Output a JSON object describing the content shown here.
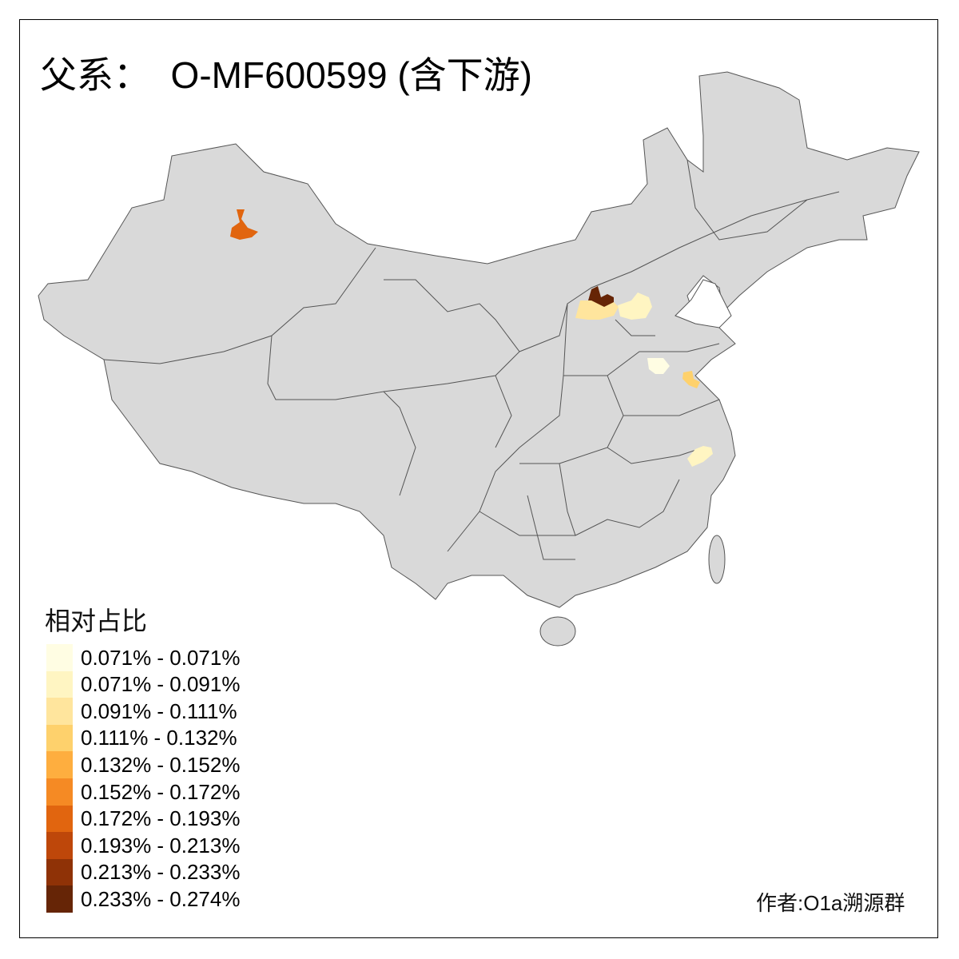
{
  "title": "父系：  O-MF600599 (含下游)",
  "legend": {
    "title": "相对占比",
    "items": [
      {
        "label": "0.071% - 0.071%",
        "color": "#FFFDE3"
      },
      {
        "label": "0.071% - 0.091%",
        "color": "#FFF5C2"
      },
      {
        "label": "0.091% - 0.111%",
        "color": "#FFE59D"
      },
      {
        "label": "0.111% - 0.132%",
        "color": "#FED16C"
      },
      {
        "label": "0.132% - 0.152%",
        "color": "#FEAE3F"
      },
      {
        "label": "0.152% - 0.172%",
        "color": "#F58A24"
      },
      {
        "label": "0.172% - 0.193%",
        "color": "#E1650F"
      },
      {
        "label": "0.193% - 0.213%",
        "color": "#BE470A"
      },
      {
        "label": "0.213% - 0.233%",
        "color": "#8F3206"
      },
      {
        "label": "0.233% - 0.274%",
        "color": "#662506"
      }
    ]
  },
  "map": {
    "base_color": "#D9D9D9",
    "border_color": "#555555",
    "highlighted_regions": [
      {
        "region": "north-xinjiang",
        "class_index": 6
      },
      {
        "region": "central-inner-mongolia-a",
        "class_index": 9
      },
      {
        "region": "central-inner-mongolia-b",
        "class_index": 2
      },
      {
        "region": "north-hebei",
        "class_index": 1
      },
      {
        "region": "west-shandong",
        "class_index": 0
      },
      {
        "region": "north-jiangsu",
        "class_index": 3
      },
      {
        "region": "north-zhejiang",
        "class_index": 1
      }
    ]
  },
  "author": "作者:O1a溯源群"
}
